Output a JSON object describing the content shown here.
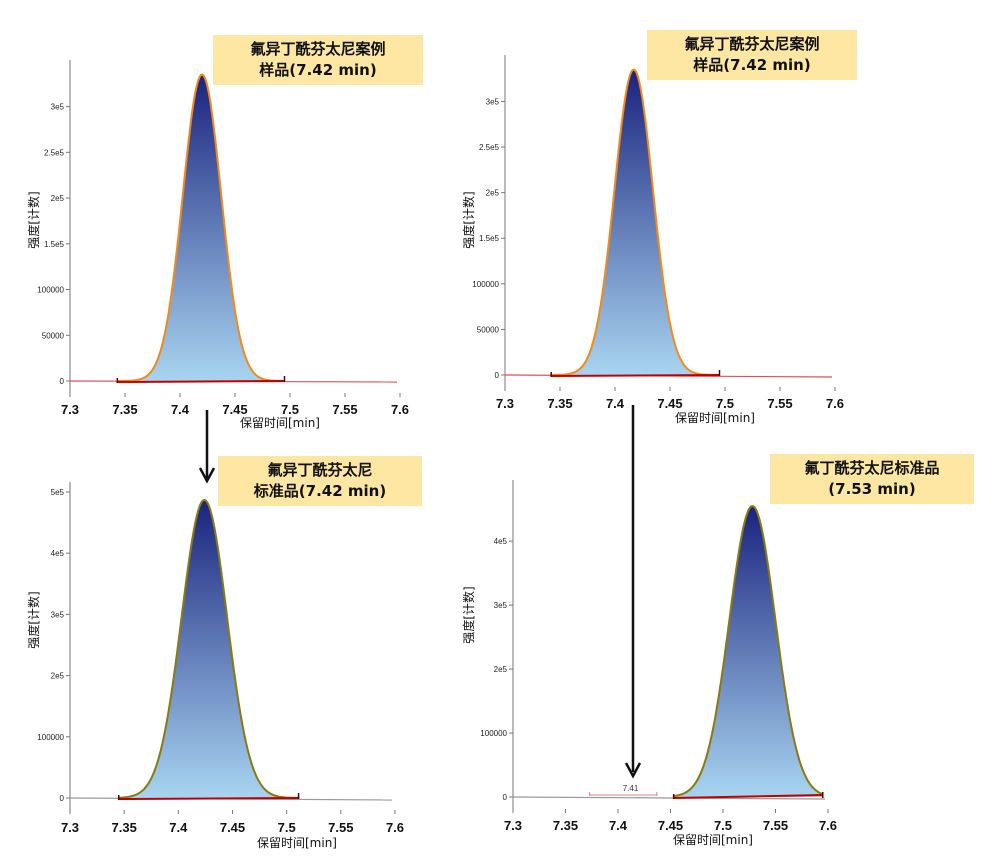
{
  "colors": {
    "peak_top": "#1a237e",
    "peak_bottom": "#a8d4f0",
    "outline_orange": "#f28a1a",
    "outline_olive": "#8a7a10",
    "baseline_red": "#c00000",
    "trace_line": "#e05050",
    "callout_bg": "#fde7a3"
  },
  "callouts": [
    {
      "lines": [
        "氟异丁酰芬太尼案例",
        "样品(7.42 min)"
      ]
    },
    {
      "lines": [
        "氟异丁酰芬太尼案例",
        "样品(7.42 min)"
      ]
    },
    {
      "lines": [
        "氟异丁酰芬太尼",
        "标准品(7.42 min)"
      ]
    },
    {
      "lines": [
        "氟丁酰芬太尼标准品",
        "(7.53 min)"
      ]
    }
  ],
  "chart_data": [
    {
      "type": "area",
      "xlabel": "保留时间[min]",
      "ylabel": "强度[计数]",
      "xlim": [
        7.3,
        7.6
      ],
      "x_ticks": [
        "7.3",
        "7.35",
        "7.4",
        "7.45",
        "7.5",
        "7.55",
        "7.6"
      ],
      "ylim": [
        0,
        340000
      ],
      "y_ticks": [
        {
          "value": 0,
          "label": "0"
        },
        {
          "value": 50000,
          "label": "50000"
        },
        {
          "value": 100000,
          "label": "100000"
        },
        {
          "value": 150000,
          "label": "1.5e5"
        },
        {
          "value": 200000,
          "label": "2e5"
        },
        {
          "value": 250000,
          "label": "2.5e5"
        },
        {
          "value": 300000,
          "label": "3e5"
        }
      ],
      "peak": {
        "center": 7.42,
        "height": 335000,
        "start": 7.343,
        "end": 7.495,
        "sigma": 0.0175
      },
      "outline": "outline_orange",
      "trace_end": 7.6
    },
    {
      "type": "area",
      "xlabel": "保留时间[min]",
      "ylabel": "强度[计数]",
      "xlim": [
        7.3,
        7.6
      ],
      "x_ticks": [
        "7.3",
        "7.35",
        "7.4",
        "7.45",
        "7.5",
        "7.55",
        "7.6"
      ],
      "ylim": [
        0,
        340000
      ],
      "y_ticks": [
        {
          "value": 0,
          "label": "0"
        },
        {
          "value": 50000,
          "label": "50000"
        },
        {
          "value": 100000,
          "label": "100000"
        },
        {
          "value": 150000,
          "label": "1.5e5"
        },
        {
          "value": 200000,
          "label": "2e5"
        },
        {
          "value": 250000,
          "label": "2.5e5"
        },
        {
          "value": 300000,
          "label": "3e5"
        }
      ],
      "peak": {
        "center": 7.417,
        "height": 335000,
        "start": 7.342,
        "end": 7.495,
        "sigma": 0.0175
      },
      "outline": "outline_orange",
      "trace_end": 7.6
    },
    {
      "type": "area",
      "xlabel": "保留时间[min]",
      "ylabel": "强度[计数]",
      "xlim": [
        7.3,
        7.6
      ],
      "x_ticks": [
        "7.3",
        "7.35",
        "7.4",
        "7.45",
        "7.5",
        "7.55",
        "7.6"
      ],
      "ylim": [
        0,
        500000
      ],
      "y_ticks": [
        {
          "value": 0,
          "label": "0"
        },
        {
          "value": 100000,
          "label": "100000"
        },
        {
          "value": 200000,
          "label": "2e5"
        },
        {
          "value": 300000,
          "label": "3e5"
        },
        {
          "value": 400000,
          "label": "4e5"
        },
        {
          "value": 500000,
          "label": "5e5"
        }
      ],
      "peak": {
        "center": 7.424,
        "height": 487000,
        "start": 7.345,
        "end": 7.511,
        "sigma": 0.021
      },
      "outline": "outline_olive",
      "trace_end": 7.6
    },
    {
      "type": "area",
      "xlabel": "保留时间[min]",
      "ylabel": "强度[计数]",
      "xlim": [
        7.3,
        7.6
      ],
      "x_ticks": [
        "7.3",
        "7.35",
        "7.4",
        "7.45",
        "7.5",
        "7.55",
        "7.6"
      ],
      "ylim": [
        0,
        480000
      ],
      "y_ticks": [
        {
          "value": 0,
          "label": "0"
        },
        {
          "value": 100000,
          "label": "100000"
        },
        {
          "value": 200000,
          "label": "2e5"
        },
        {
          "value": 300000,
          "label": "3e5"
        },
        {
          "value": 400000,
          "label": "4e5"
        }
      ],
      "peak": {
        "center": 7.528,
        "height": 455000,
        "start": 7.453,
        "end": 7.595,
        "sigma": 0.022
      },
      "outline": "outline_olive",
      "trace_end": 7.6,
      "annotation": {
        "x": 7.41,
        "label": "7.41",
        "from": 7.373,
        "to": 7.437
      }
    }
  ]
}
